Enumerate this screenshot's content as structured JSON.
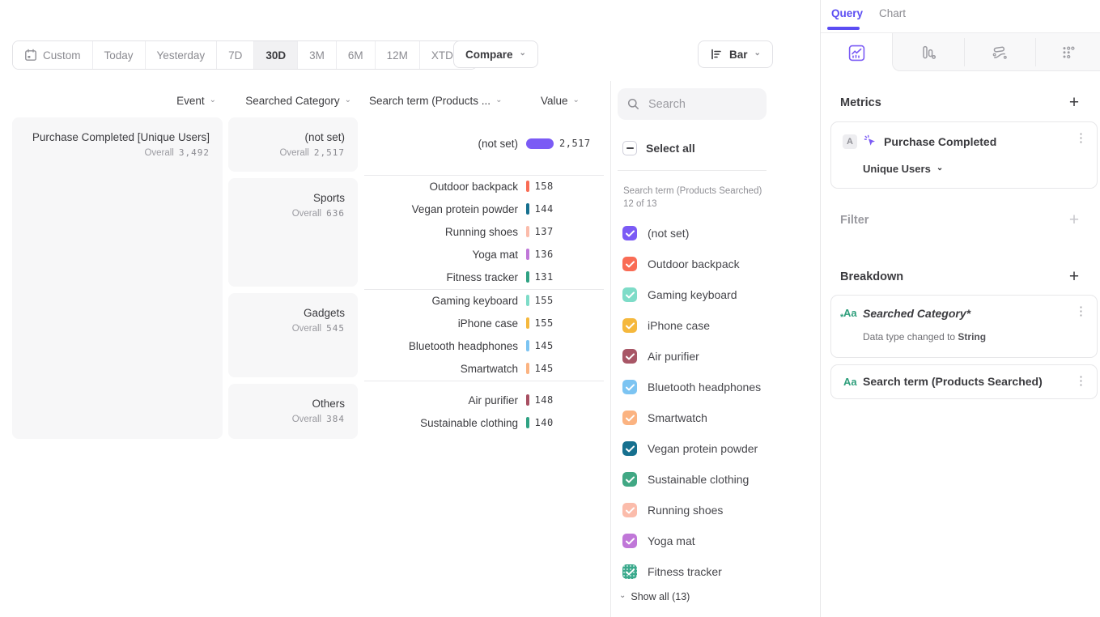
{
  "toolbar": {
    "date_ranges": [
      {
        "label": "Custom",
        "icon": "calendar",
        "active": false,
        "chevron": false
      },
      {
        "label": "Today",
        "active": false,
        "chevron": false
      },
      {
        "label": "Yesterday",
        "active": false,
        "chevron": false
      },
      {
        "label": "7D",
        "active": false,
        "chevron": false
      },
      {
        "label": "30D",
        "active": true,
        "chevron": false
      },
      {
        "label": "3M",
        "active": false,
        "chevron": false
      },
      {
        "label": "6M",
        "active": false,
        "chevron": false
      },
      {
        "label": "12M",
        "active": false,
        "chevron": false
      },
      {
        "label": "XTD",
        "active": false,
        "chevron": true
      }
    ],
    "compare_label": "Compare",
    "chart_type_label": "Bar"
  },
  "table": {
    "headers": {
      "event": "Event",
      "category": "Searched Category",
      "term": "Search term (Products ...",
      "value": "Value"
    },
    "overall_label": "Overall",
    "event": {
      "name": "Purchase Completed [Unique Users]",
      "overall": "3,492"
    },
    "groups": [
      {
        "category": "(not set)",
        "overall": "2,517",
        "rows": [
          {
            "term": "(not set)",
            "value": "2,517",
            "color": "#7b5bf5",
            "wide": true
          }
        ]
      },
      {
        "category": "Sports",
        "overall": "636",
        "rows": [
          {
            "term": "Outdoor backpack",
            "value": "158",
            "color": "#f96c55"
          },
          {
            "term": "Vegan protein powder",
            "value": "144",
            "color": "#16708f"
          },
          {
            "term": "Running shoes",
            "value": "137",
            "color": "#fbbcab"
          },
          {
            "term": "Yoga mat",
            "value": "136",
            "color": "#c077d8"
          },
          {
            "term": "Fitness tracker",
            "value": "131",
            "color": "#2fa283"
          }
        ]
      },
      {
        "category": "Gadgets",
        "overall": "545",
        "rows": [
          {
            "term": "Gaming keyboard",
            "value": "155",
            "color": "#7edcc8"
          },
          {
            "term": "iPhone case",
            "value": "155",
            "color": "#f5b83d"
          },
          {
            "term": "Bluetooth headphones",
            "value": "145",
            "color": "#7cc4f2"
          },
          {
            "term": "Smartwatch",
            "value": "145",
            "color": "#fbb381"
          }
        ]
      },
      {
        "category": "Others",
        "overall": "384",
        "rows": [
          {
            "term": "Air purifier",
            "value": "148",
            "color": "#a84f62"
          },
          {
            "term": "Sustainable clothing",
            "value": "140",
            "color": "#2fa283"
          }
        ]
      }
    ]
  },
  "legend": {
    "search_placeholder": "Search",
    "select_all_label": "Select all",
    "subtitle": "Search term (Products Searched) 12 of 13",
    "show_all_label": "Show all (13)",
    "items": [
      {
        "label": "(not set)",
        "color": "#7b5bf5",
        "checked": true
      },
      {
        "label": "Outdoor backpack",
        "color": "#f96c55",
        "checked": true
      },
      {
        "label": "Gaming keyboard",
        "color": "#7edcc8",
        "checked": true
      },
      {
        "label": "iPhone case",
        "color": "#f5b83d",
        "checked": true
      },
      {
        "label": "Air purifier",
        "color": "#a85666",
        "checked": true
      },
      {
        "label": "Bluetooth headphones",
        "color": "#7cc4f2",
        "checked": true
      },
      {
        "label": "Smartwatch",
        "color": "#fbb381",
        "checked": true
      },
      {
        "label": "Vegan protein powder",
        "color": "#16708f",
        "checked": true
      },
      {
        "label": "Sustainable clothing",
        "color": "#41a884",
        "checked": true
      },
      {
        "label": "Running shoes",
        "color": "#fbbcab",
        "checked": true
      },
      {
        "label": "Yoga mat",
        "color": "#c077d8",
        "checked": true
      },
      {
        "label": "Fitness tracker",
        "color": "#3aa98c",
        "checked": true,
        "pattern": true
      }
    ]
  },
  "query_panel": {
    "tabs": {
      "query": "Query",
      "chart": "Chart"
    },
    "metrics": {
      "heading": "Metrics",
      "badge": "A",
      "event_name": "Purchase Completed",
      "aggregation": "Unique Users"
    },
    "filter": {
      "heading": "Filter"
    },
    "breakdown": {
      "heading": "Breakdown",
      "items": [
        {
          "icon": "Aa",
          "label": "Searched Category*",
          "italic": true,
          "modified": true,
          "note_prefix": "Data type changed to ",
          "note_bold": "String"
        },
        {
          "icon": "Aa",
          "label": "Search term (Products Searched)",
          "italic": false,
          "modified": false
        }
      ]
    }
  },
  "colors": {
    "accent": "#5b4df3",
    "bar_purple": "#7b5bf5",
    "breakdown_icon_green": "#2f9f7c"
  }
}
